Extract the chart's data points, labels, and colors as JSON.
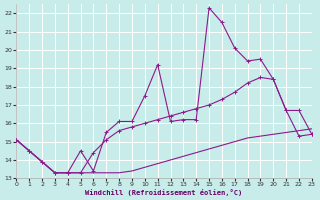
{
  "xlabel": "Windchill (Refroidissement éolien,°C)",
  "background_color": "#c8ecea",
  "grid_color": "#ffffff",
  "line_color": "#8b1a8b",
  "xlim": [
    0,
    23
  ],
  "ylim": [
    13,
    22.5
  ],
  "xticks": [
    0,
    1,
    2,
    3,
    4,
    5,
    6,
    7,
    8,
    9,
    10,
    11,
    12,
    13,
    14,
    15,
    16,
    17,
    18,
    19,
    20,
    21,
    22,
    23
  ],
  "yticks": [
    13,
    14,
    15,
    16,
    17,
    18,
    19,
    20,
    21,
    22
  ],
  "s1x": [
    0,
    1,
    2,
    3,
    4,
    5,
    6,
    7,
    8,
    9,
    10,
    11,
    12,
    13,
    14,
    15,
    16,
    17,
    18,
    19,
    20,
    21,
    22,
    23
  ],
  "s1y": [
    15.1,
    14.5,
    13.9,
    13.3,
    13.3,
    13.3,
    13.3,
    13.3,
    13.3,
    13.4,
    13.6,
    13.8,
    14.0,
    14.2,
    14.4,
    14.6,
    14.8,
    15.0,
    15.2,
    15.3,
    15.4,
    15.5,
    15.6,
    15.7
  ],
  "s2x": [
    0,
    1,
    2,
    3,
    4,
    5,
    6,
    7,
    8,
    9,
    10,
    11,
    12,
    13,
    14,
    15,
    16,
    17,
    18,
    19,
    20,
    21,
    22,
    23
  ],
  "s2y": [
    15.1,
    14.5,
    13.9,
    13.3,
    13.3,
    13.3,
    14.4,
    15.1,
    15.6,
    15.8,
    16.0,
    16.2,
    16.4,
    16.6,
    16.8,
    17.0,
    17.3,
    17.7,
    18.2,
    18.5,
    18.4,
    16.7,
    16.7,
    15.4
  ],
  "s3x": [
    0,
    1,
    2,
    3,
    4,
    5,
    6,
    7,
    8,
    9,
    10,
    11,
    12,
    13,
    14,
    15,
    16,
    17,
    18,
    19,
    20,
    21,
    22,
    23
  ],
  "s3y": [
    15.1,
    14.5,
    13.9,
    13.3,
    13.3,
    14.5,
    13.4,
    15.5,
    16.1,
    16.1,
    17.5,
    19.2,
    16.1,
    16.2,
    16.2,
    22.3,
    21.5,
    20.1,
    19.4,
    19.5,
    18.4,
    16.7,
    15.3,
    15.4
  ]
}
